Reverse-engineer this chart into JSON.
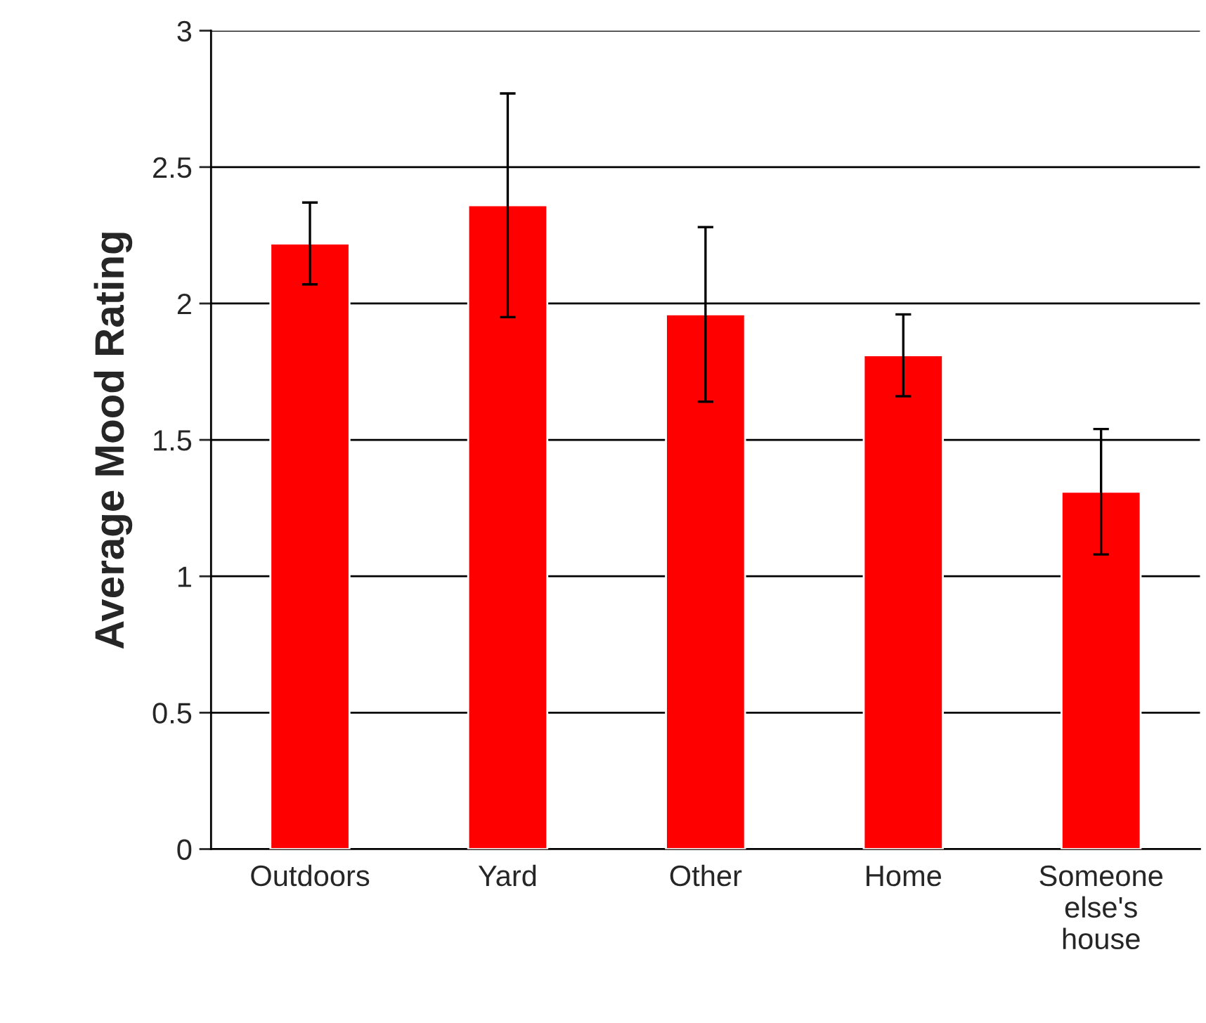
{
  "chart_data": {
    "type": "bar",
    "ylabel": "Average Mood Rating",
    "categories": [
      "Outdoors",
      "Yard",
      "Other",
      "Home",
      "Someone else's house"
    ],
    "values": [
      2.22,
      2.36,
      1.96,
      1.81,
      1.31
    ],
    "errors": [
      [
        2.07,
        2.37
      ],
      [
        1.95,
        2.77
      ],
      [
        1.64,
        2.28
      ],
      [
        1.66,
        1.96
      ],
      [
        1.08,
        1.54
      ]
    ],
    "color": "#ff0000",
    "ylim": [
      0,
      3
    ],
    "yticks": [
      0,
      0.5,
      1,
      1.5,
      2,
      2.5,
      3
    ],
    "grid": "y"
  }
}
